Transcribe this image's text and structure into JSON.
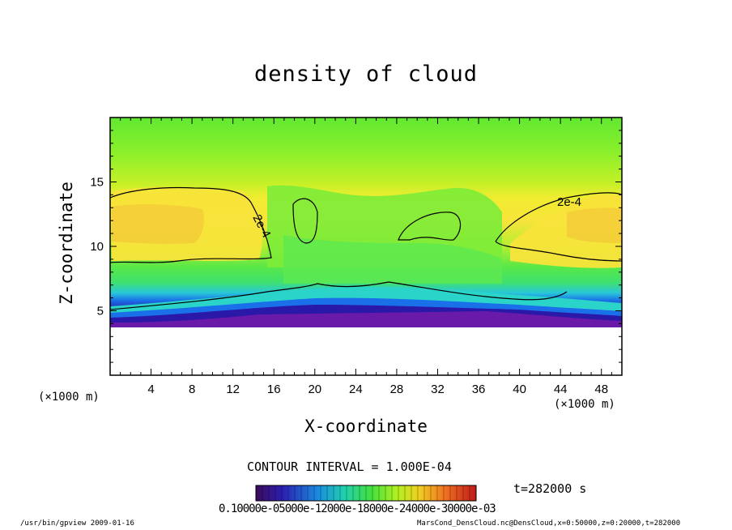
{
  "chart_data": {
    "type": "heatmap",
    "title": "density of cloud",
    "xlabel": "X-coordinate",
    "ylabel": "Z-coordinate",
    "x_unit": "(×1000 m)",
    "z_unit": "(×1000 m)",
    "xlim": [
      0,
      50
    ],
    "ylim": [
      0,
      20
    ],
    "x_ticks": [
      4,
      8,
      12,
      16,
      20,
      24,
      28,
      32,
      36,
      40,
      44,
      48
    ],
    "y_ticks": [
      5,
      10,
      15
    ],
    "contour_interval_text": "CONTOUR INTERVAL = 1.000E-04",
    "contour_label": "2e-4",
    "contour_labels_shown": [
      "2e-4",
      "2e-4"
    ],
    "time_text": "t=282000 s",
    "colorbar_tick_text": "0.10000e-05000e-12000e-18000e-24000e-30000e-03",
    "colormap": [
      "#3b0a5e",
      "#2b1fb0",
      "#1a6fe0",
      "#20c8c8",
      "#30e060",
      "#7cf020",
      "#d8f020",
      "#f8e020",
      "#f0a020",
      "#e05020",
      "#b01010"
    ],
    "grid": false,
    "legend": "colorbar-bottom"
  },
  "footer": {
    "left": "/usr/bin/gpview   2009-01-16",
    "right": "MarsCond_DensCloud.nc@DensCloud,x=0:50000,z=0:20000,t=282000"
  }
}
